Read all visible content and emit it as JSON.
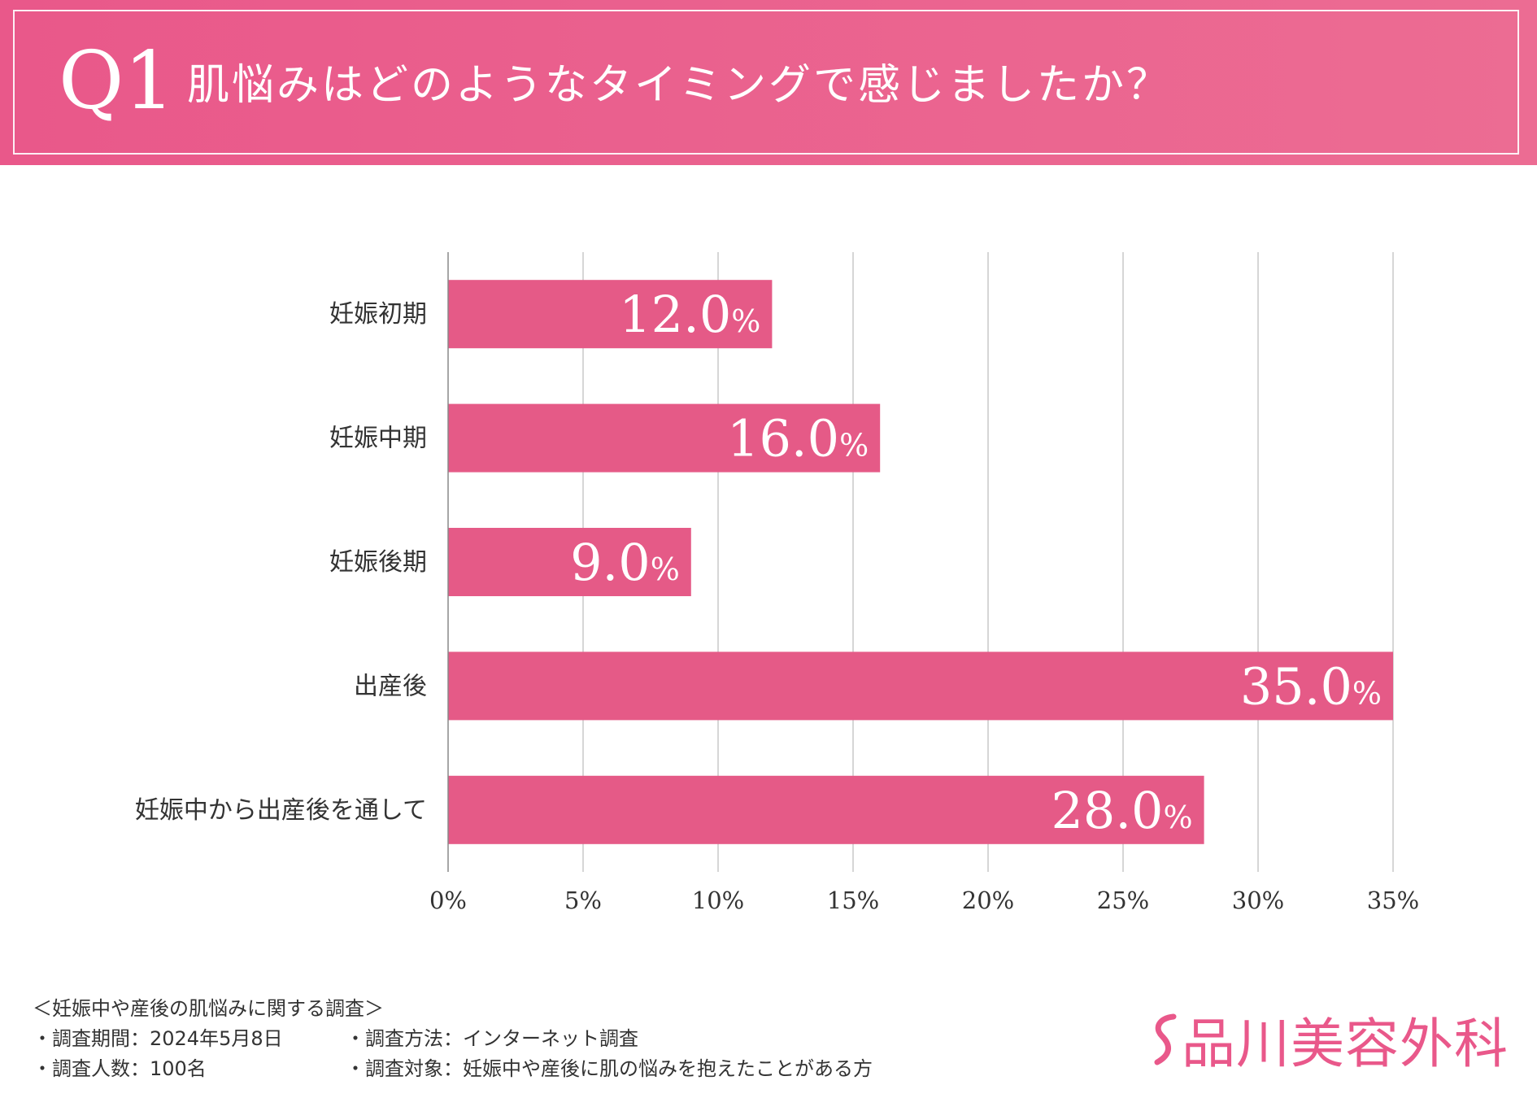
{
  "header": {
    "q_number": "Q1",
    "question": "肌悩みはどのようなタイミングで感じましたか？"
  },
  "chart_data": {
    "type": "bar",
    "orientation": "horizontal",
    "categories": [
      "妊娠初期",
      "妊娠中期",
      "妊娠後期",
      "出産後",
      "妊娠中から出産後を通して"
    ],
    "values": [
      12.0,
      16.0,
      9.0,
      35.0,
      28.0
    ],
    "value_labels": [
      "12.0",
      "16.0",
      "9.0",
      "35.0",
      "28.0"
    ],
    "value_suffix": "%",
    "title": "肌悩みはどのようなタイミングで感じましたか？",
    "xlabel": "",
    "ylabel": "",
    "xlim": [
      0,
      35
    ],
    "x_ticks": [
      "0%",
      "5%",
      "10%",
      "15%",
      "20%",
      "25%",
      "30%",
      "35%"
    ],
    "grid": true,
    "legend": "none"
  },
  "survey": {
    "title": "＜妊娠中や産後の肌悩みに関する調査＞",
    "period": "・調査期間：2024年5月8日",
    "count": "・調査人数：100名",
    "method": "・調査方法：インターネット調査",
    "target": "・調査対象：妊娠中や産後に肌の悩みを抱えたことがある方"
  },
  "brand": {
    "name": "品川美容外科",
    "logo_icon": "s-swirl-icon"
  },
  "colors": {
    "accent": "#e9588a",
    "bar": "#e55a87",
    "grid": "#c8c8c8",
    "text": "#333333"
  }
}
